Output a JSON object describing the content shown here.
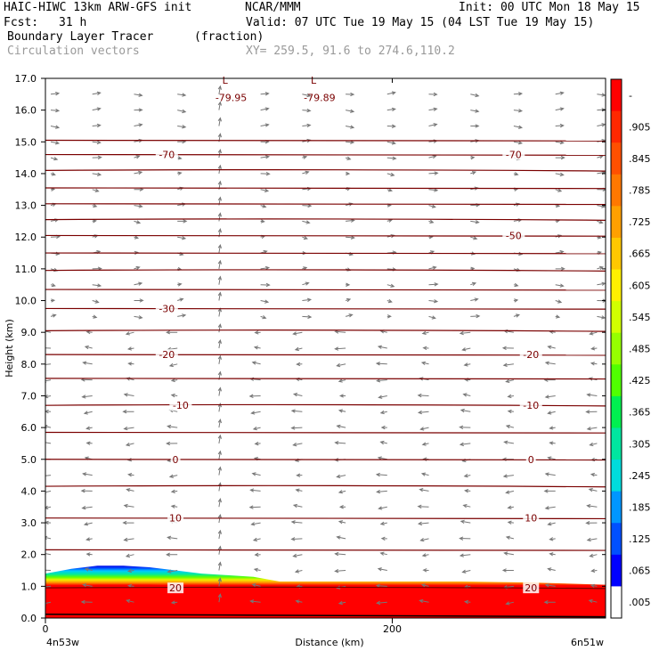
{
  "header": {
    "title_left": "HAIC-HIWC 13km ARW-GFS init",
    "title_center": "NCAR/MMM",
    "init": "Init: 00 UTC Mon 18 May 15",
    "fcst_label": "Fcst:",
    "fcst_value": "31 h",
    "valid": "Valid: 07 UTC Tue 19 May 15 (04 LST Tue 19 May 15)",
    "field": "Boundary Layer Tracer",
    "units": "(fraction)",
    "vector_label": "Circulation vectors",
    "xy": "XY= 259.5, 91.6 to 274.6,110.2"
  },
  "chart_data": {
    "type": "heatmap",
    "title": "Boundary Layer Tracer",
    "ylabel": "Height (km)",
    "xlabel": "Distance (km)",
    "ylim": [
      0,
      17
    ],
    "yticks": [
      "0.0",
      "1.0",
      "2.0",
      "3.0",
      "4.0",
      "5.0",
      "6.0",
      "7.0",
      "8.0",
      "9.0",
      "10.0",
      "11.0",
      "12.0",
      "13.0",
      "14.0",
      "15.0",
      "16.0",
      "17.0"
    ],
    "xticks": [
      {
        "label": "0",
        "value": 0
      },
      {
        "label": "200",
        "value": 200
      }
    ],
    "xlim": [
      0,
      323
    ],
    "endpoints": {
      "left": "4n53w",
      "right": "6n51w"
    },
    "colorbar": {
      "labels": [
        "-",
        ".905",
        ".845",
        ".785",
        ".725",
        ".665",
        ".605",
        ".545",
        ".485",
        ".425",
        ".365",
        ".305",
        ".245",
        ".185",
        ".125",
        ".065",
        ".005"
      ],
      "colors": [
        "#ff0000",
        "#ff2800",
        "#ff5000",
        "#ff7800",
        "#ffa000",
        "#ffc800",
        "#fff000",
        "#d2ff00",
        "#96ff00",
        "#50ff00",
        "#00f050",
        "#00e6a0",
        "#00dcdc",
        "#0096ff",
        "#0050ff",
        "#0000ff",
        "#ffffff"
      ]
    },
    "tracer_top_km": [
      {
        "x": 0,
        "top": 1.4
      },
      {
        "x": 15,
        "top": 1.55
      },
      {
        "x": 30,
        "top": 1.65
      },
      {
        "x": 45,
        "top": 1.65
      },
      {
        "x": 60,
        "top": 1.6
      },
      {
        "x": 75,
        "top": 1.5
      },
      {
        "x": 90,
        "top": 1.4
      },
      {
        "x": 105,
        "top": 1.35
      },
      {
        "x": 120,
        "top": 1.3
      },
      {
        "x": 135,
        "top": 1.15
      },
      {
        "x": 160,
        "top": 1.15
      },
      {
        "x": 200,
        "top": 1.15
      },
      {
        "x": 240,
        "top": 1.15
      },
      {
        "x": 280,
        "top": 1.12
      },
      {
        "x": 323,
        "top": 1.05
      }
    ],
    "red_core_top_km": [
      {
        "x": 0,
        "top": 1.0
      },
      {
        "x": 30,
        "top": 1.05
      },
      {
        "x": 60,
        "top": 1.05
      },
      {
        "x": 90,
        "top": 1.0
      },
      {
        "x": 120,
        "top": 0.95
      },
      {
        "x": 135,
        "top": 0.75
      },
      {
        "x": 200,
        "top": 0.75
      },
      {
        "x": 280,
        "top": 0.75
      },
      {
        "x": 323,
        "top": 0.7
      }
    ],
    "isotherm_heights_km": [
      0.95,
      2.15,
      3.15,
      4.15,
      5.0,
      5.85,
      6.7,
      7.55,
      8.3,
      9.05,
      9.75,
      10.35,
      10.95,
      11.5,
      12.05,
      12.55,
      13.05,
      13.55,
      14.1,
      14.6,
      15.05
    ],
    "isotherm_labels": [
      {
        "text": "20",
        "x": 75,
        "y": 0.95
      },
      {
        "text": "20",
        "x": 280,
        "y": 0.95
      },
      {
        "text": "10",
        "x": 75,
        "y": 3.15
      },
      {
        "text": "10",
        "x": 280,
        "y": 3.15
      },
      {
        "text": "0",
        "x": 75,
        "y": 5.0
      },
      {
        "text": "0",
        "x": 280,
        "y": 5.0
      },
      {
        "text": "-10",
        "x": 78,
        "y": 6.7
      },
      {
        "text": "-10",
        "x": 280,
        "y": 6.7
      },
      {
        "text": "-20",
        "x": 70,
        "y": 8.3
      },
      {
        "text": "-20",
        "x": 280,
        "y": 8.3
      },
      {
        "text": "-30",
        "x": 70,
        "y": 9.75
      },
      {
        "text": "-50",
        "x": 270,
        "y": 12.05
      },
      {
        "text": "-70",
        "x": 70,
        "y": 14.6
      },
      {
        "text": "-70",
        "x": 270,
        "y": 14.6
      }
    ],
    "annotations": [
      {
        "text": "L",
        "x": 102,
        "y": 16.95
      },
      {
        "text": "-79.95",
        "x": 98,
        "y": 16.4
      },
      {
        "text": "L",
        "x": 153,
        "y": 16.95
      },
      {
        "text": "-79.89",
        "x": 149,
        "y": 16.4
      }
    ],
    "vector_columns_km": [
      0,
      24,
      48,
      73,
      97,
      121,
      145,
      170,
      194,
      218,
      242,
      267,
      291,
      315
    ],
    "vector_levels_km": [
      0.5,
      1.0,
      1.5,
      2.0,
      2.5,
      3.0,
      3.5,
      4.0,
      4.5,
      5.0,
      5.5,
      6.0,
      6.5,
      7.0,
      7.5,
      8.0,
      8.5,
      9.0,
      9.5,
      10.0,
      10.5,
      11.0,
      11.5,
      12.0,
      12.5,
      13.0,
      13.5,
      14.0,
      14.5,
      15.0,
      15.5,
      16.0,
      16.5
    ]
  }
}
